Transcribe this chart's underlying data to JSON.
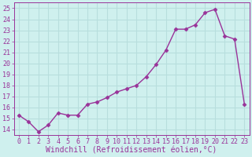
{
  "x": [
    0,
    1,
    2,
    3,
    4,
    5,
    6,
    7,
    8,
    9,
    10,
    11,
    12,
    13,
    14,
    15,
    16,
    17,
    18,
    19,
    20,
    21,
    22,
    23
  ],
  "y": [
    15.3,
    14.7,
    13.8,
    14.4,
    15.5,
    15.3,
    15.3,
    16.3,
    16.5,
    16.9,
    17.4,
    17.7,
    18.0,
    18.8,
    19.9,
    21.2,
    23.1,
    23.1,
    23.5,
    24.6,
    24.9,
    22.5,
    22.2,
    16.3
  ],
  "line_color": "#993399",
  "marker": "D",
  "marker_size": 2.5,
  "linewidth": 1.0,
  "xlabel": "Windchill (Refroidissement éolien,°C)",
  "xlabel_fontsize": 7,
  "xtick_labels": [
    "0",
    "1",
    "2",
    "3",
    "4",
    "5",
    "6",
    "7",
    "8",
    "9",
    "10",
    "11",
    "12",
    "13",
    "14",
    "15",
    "16",
    "17",
    "18",
    "19",
    "20",
    "21",
    "22",
    "23"
  ],
  "xticks": [
    0,
    1,
    2,
    3,
    4,
    5,
    6,
    7,
    8,
    9,
    10,
    11,
    12,
    13,
    14,
    15,
    16,
    17,
    18,
    19,
    20,
    21,
    22,
    23
  ],
  "yticks": [
    14,
    15,
    16,
    17,
    18,
    19,
    20,
    21,
    22,
    23,
    24,
    25
  ],
  "ylim": [
    13.5,
    25.5
  ],
  "xlim": [
    -0.5,
    23.5
  ],
  "bg_color": "#cff0ee",
  "grid_color": "#b8dedd",
  "tick_color": "#993399",
  "tick_fontsize": 6,
  "spine_color": "#993399",
  "figsize": [
    3.2,
    2.0
  ],
  "dpi": 100
}
